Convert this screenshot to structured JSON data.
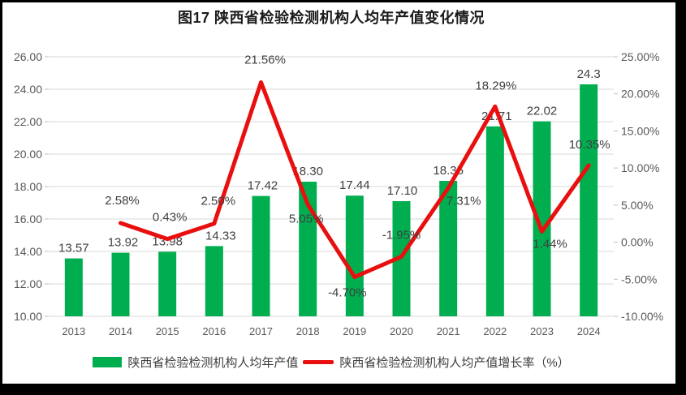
{
  "title": "图17 陕西省检验检测机构人均年产值变化情况",
  "legend": {
    "bar_label": "陕西省检验检测机构人均年产值",
    "line_label": "陕西省检验检测机构人均产值增长率（%）"
  },
  "colors": {
    "bar": "#00AE50",
    "line": "#E90F0F",
    "grid": "#D9D9D9",
    "tick": "#BFBFBF",
    "axis_text": "#595959",
    "label_text": "#3f3f3f",
    "title_text": "#1a1a1a",
    "frame": "#000000",
    "background": "#ffffff"
  },
  "chart_data": {
    "type": "bar+line combo, dual axis",
    "title": "图17 陕西省检验检测机构人均年产值变化情况",
    "categories": [
      "2013",
      "2014",
      "2015",
      "2016",
      "2017",
      "2018",
      "2019",
      "2020",
      "2021",
      "2022",
      "2023",
      "2024"
    ],
    "series": [
      {
        "name": "陕西省检验检测机构人均年产值",
        "type": "bar",
        "axis": "left",
        "values": [
          13.57,
          13.92,
          13.98,
          14.33,
          17.42,
          18.3,
          17.44,
          17.1,
          18.35,
          21.71,
          22.02,
          24.3
        ],
        "labels": [
          "13.57",
          "13.92",
          "13.98",
          "14.33",
          "17.42",
          "18.30",
          "17.44",
          "17.10",
          "18.35",
          "21.71",
          "22.02",
          "24.3"
        ]
      },
      {
        "name": "陕西省检验检测机构人均产值增长率（%）",
        "type": "line",
        "axis": "right",
        "values": [
          null,
          2.58,
          0.43,
          2.5,
          21.56,
          5.05,
          -4.7,
          -1.95,
          7.31,
          18.29,
          1.44,
          10.35
        ],
        "labels": [
          null,
          "2.58%",
          "0.43%",
          "2.50%",
          "21.56%",
          "5.05%",
          "-4.70%",
          "-1.95%",
          "7.31%",
          "18.29%",
          "1.44%",
          "10.35%"
        ]
      }
    ],
    "left_axis": {
      "min": 10,
      "max": 26,
      "step": 2,
      "tick_labels": [
        "10.00",
        "12.00",
        "14.00",
        "16.00",
        "18.00",
        "20.00",
        "22.00",
        "24.00",
        "26.00"
      ]
    },
    "right_axis": {
      "min": -10,
      "max": 25,
      "step": 5,
      "tick_labels": [
        "-10.00%",
        "-5.00%",
        "0.00%",
        "5.00%",
        "10.00%",
        "15.00%",
        "20.00%",
        "25.00%"
      ]
    },
    "grid": true,
    "legend_position": "bottom"
  }
}
